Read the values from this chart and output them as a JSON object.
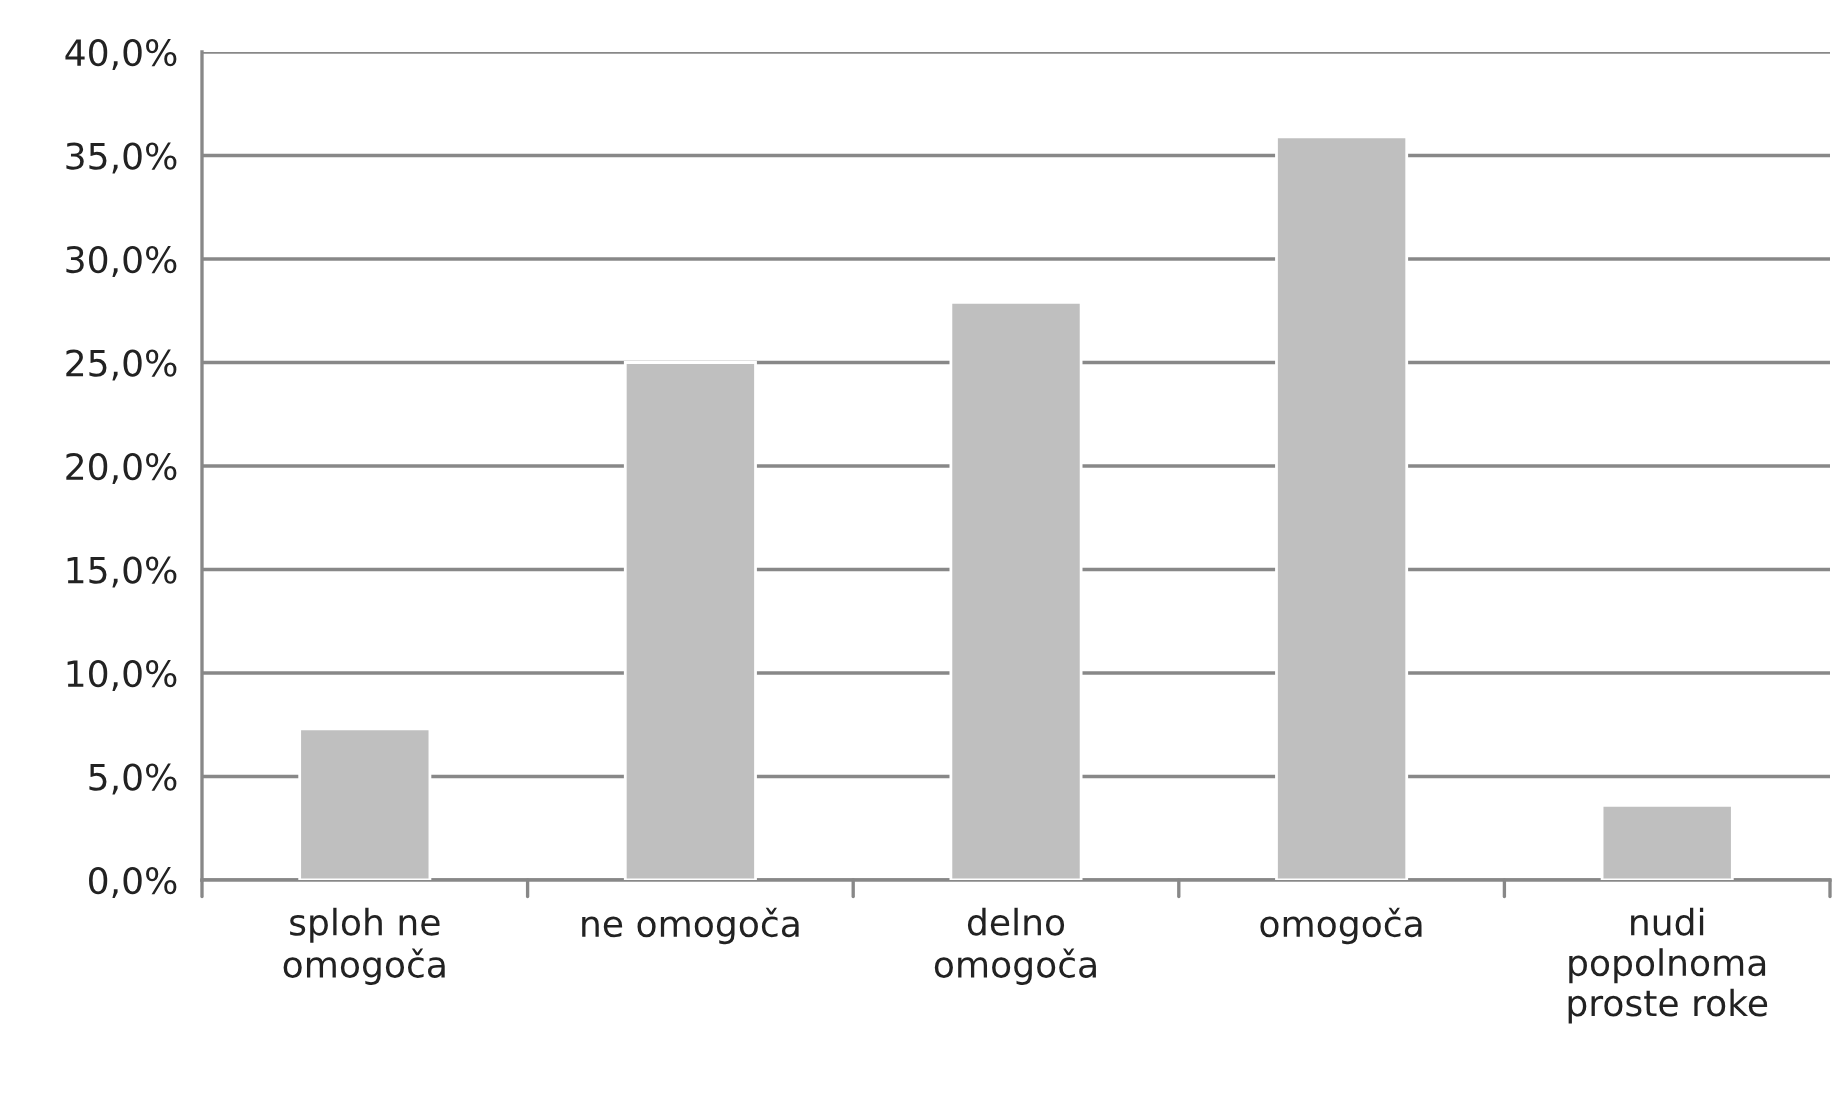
{
  "chart_data": {
    "type": "bar",
    "categories": [
      "sploh ne\nomogoča",
      "ne omogoča",
      "delno\nomogoča",
      "omogoča",
      "nudi\npopolnoma\nproste roke"
    ],
    "values": [
      7.3,
      25.0,
      27.9,
      35.9,
      3.6
    ],
    "color": "#bfbfbf",
    "ylim": [
      0,
      40
    ],
    "yticks": [
      {
        "value": 0,
        "label": "0,0%"
      },
      {
        "value": 5,
        "label": "5,0%"
      },
      {
        "value": 10,
        "label": "10,0%"
      },
      {
        "value": 15,
        "label": "15,0%"
      },
      {
        "value": 20,
        "label": "20,0%"
      },
      {
        "value": 25,
        "label": "25,0%"
      },
      {
        "value": 30,
        "label": "30,0%"
      },
      {
        "value": 35,
        "label": "35,0%"
      },
      {
        "value": 40,
        "label": "40,0%"
      }
    ],
    "grid": "y"
  }
}
